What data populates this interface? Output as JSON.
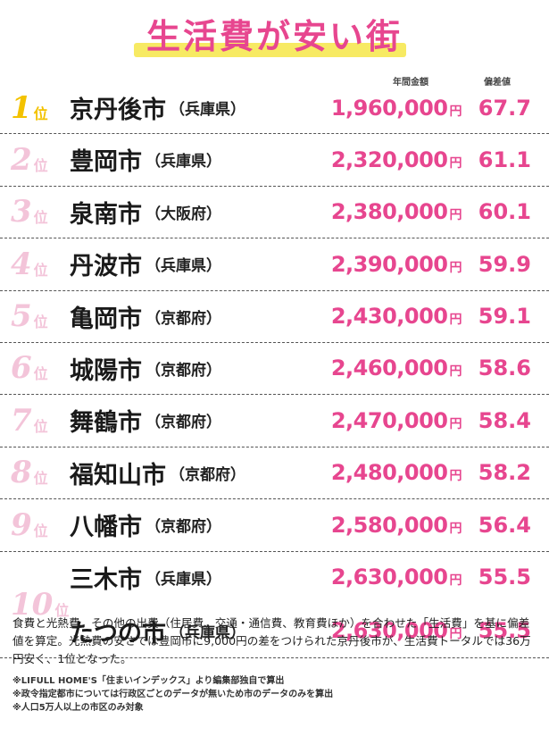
{
  "title": "生活費が安い街",
  "columns": {
    "amount": "年間金額",
    "score": "偏差値"
  },
  "rank_suffix": "位",
  "yen": "円",
  "rankings": [
    {
      "rank": "1",
      "cities": [
        {
          "city": "京丹後市",
          "pref": "（兵庫県）",
          "amount": "1,960,000",
          "score": "67.7"
        }
      ]
    },
    {
      "rank": "2",
      "cities": [
        {
          "city": "豊岡市",
          "pref": "（兵庫県）",
          "amount": "2,320,000",
          "score": "61.1"
        }
      ]
    },
    {
      "rank": "3",
      "cities": [
        {
          "city": "泉南市",
          "pref": "（大阪府）",
          "amount": "2,380,000",
          "score": "60.1"
        }
      ]
    },
    {
      "rank": "4",
      "cities": [
        {
          "city": "丹波市",
          "pref": "（兵庫県）",
          "amount": "2,390,000",
          "score": "59.9"
        }
      ]
    },
    {
      "rank": "5",
      "cities": [
        {
          "city": "亀岡市",
          "pref": "（京都府）",
          "amount": "2,430,000",
          "score": "59.1"
        }
      ]
    },
    {
      "rank": "6",
      "cities": [
        {
          "city": "城陽市",
          "pref": "（京都府）",
          "amount": "2,460,000",
          "score": "58.6"
        }
      ]
    },
    {
      "rank": "7",
      "cities": [
        {
          "city": "舞鶴市",
          "pref": "（京都府）",
          "amount": "2,470,000",
          "score": "58.4"
        }
      ]
    },
    {
      "rank": "8",
      "cities": [
        {
          "city": "福知山市",
          "pref": "（京都府）",
          "amount": "2,480,000",
          "score": "58.2"
        }
      ]
    },
    {
      "rank": "9",
      "cities": [
        {
          "city": "八幡市",
          "pref": "（京都府）",
          "amount": "2,580,000",
          "score": "56.4"
        }
      ]
    },
    {
      "rank": "10",
      "cities": [
        {
          "city": "三木市",
          "pref": "（兵庫県）",
          "amount": "2,630,000",
          "score": "55.5"
        },
        {
          "city": "たつの市",
          "pref": "（兵庫県）",
          "amount": "2,630,000",
          "score": "55.5"
        }
      ]
    }
  ],
  "description": "食費と光熱費、その他の出費（住居費、交通・通信費、教育費ほか）を合わせた「生活費」を基に偏差値を算定。光熱費の安さでは豊岡市に9,000円の差をつけられた京丹後市が、生活費トータルでは36万円安く、1位となった。",
  "footnotes": [
    "※LIFULL HOME'S「住まいインデックス」より編集部独自で算出",
    "※政令指定都市については行政区ごとのデータが無いため市のデータのみを算出",
    "※人口5万人以上の市区のみ対象"
  ]
}
